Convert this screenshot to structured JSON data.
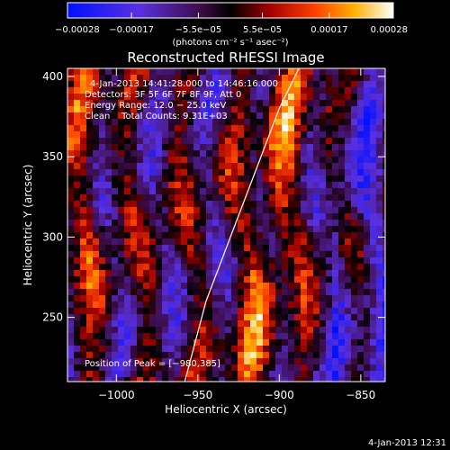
{
  "chart_data": {
    "type": "heatmap",
    "title": "Reconstructed RHESSI Image",
    "xlabel": "Heliocentric X (arcsec)",
    "ylabel": "Heliocentric Y (arcsec)",
    "xlim": [
      -1030,
      -835
    ],
    "ylim": [
      210,
      405
    ],
    "x_ticks": [
      -1000,
      -950,
      -900,
      -850
    ],
    "x_tick_labels": [
      "−1000",
      "−950",
      "−900",
      "−850"
    ],
    "y_ticks": [
      250,
      300,
      350,
      400
    ],
    "y_tick_labels": [
      "250",
      "300",
      "350",
      "400"
    ],
    "colorbar": {
      "min": -0.00028,
      "max": 0.00028,
      "ticks": [
        -0.00028,
        -0.00017,
        -5.5e-05,
        5.5e-05,
        0.00017,
        0.00028
      ],
      "tick_labels": [
        "−0.00028",
        "−0.00017",
        "−5.5e−05",
        "5.5e−05",
        "0.00017",
        "0.00028"
      ],
      "units": "(photons cm⁻² s⁻¹ asec⁻²)",
      "colormap": "black-blue-purple-red-orange-yellow-white"
    },
    "annotations": [
      "4-Jan-2013 14:41:28.000 to 14:46:16.000",
      "Detectors: 3F 5F 6F 7F 8F 9F, Att 0",
      "Energy Range: 12.0 − 25.0 keV",
      "Clean    Total Counts: 9.31E+03",
      "Position of Peak = [−980,385]"
    ],
    "peak": {
      "x": -980,
      "y": 385
    },
    "limb_curve": {
      "x": [
        -958,
        -945,
        -930,
        -915,
        -900,
        -888
      ],
      "y": [
        210,
        260,
        300,
        340,
        380,
        405
      ]
    },
    "grid": false
  },
  "footer": {
    "timestamp": "4-Jan-2013 12:31"
  }
}
